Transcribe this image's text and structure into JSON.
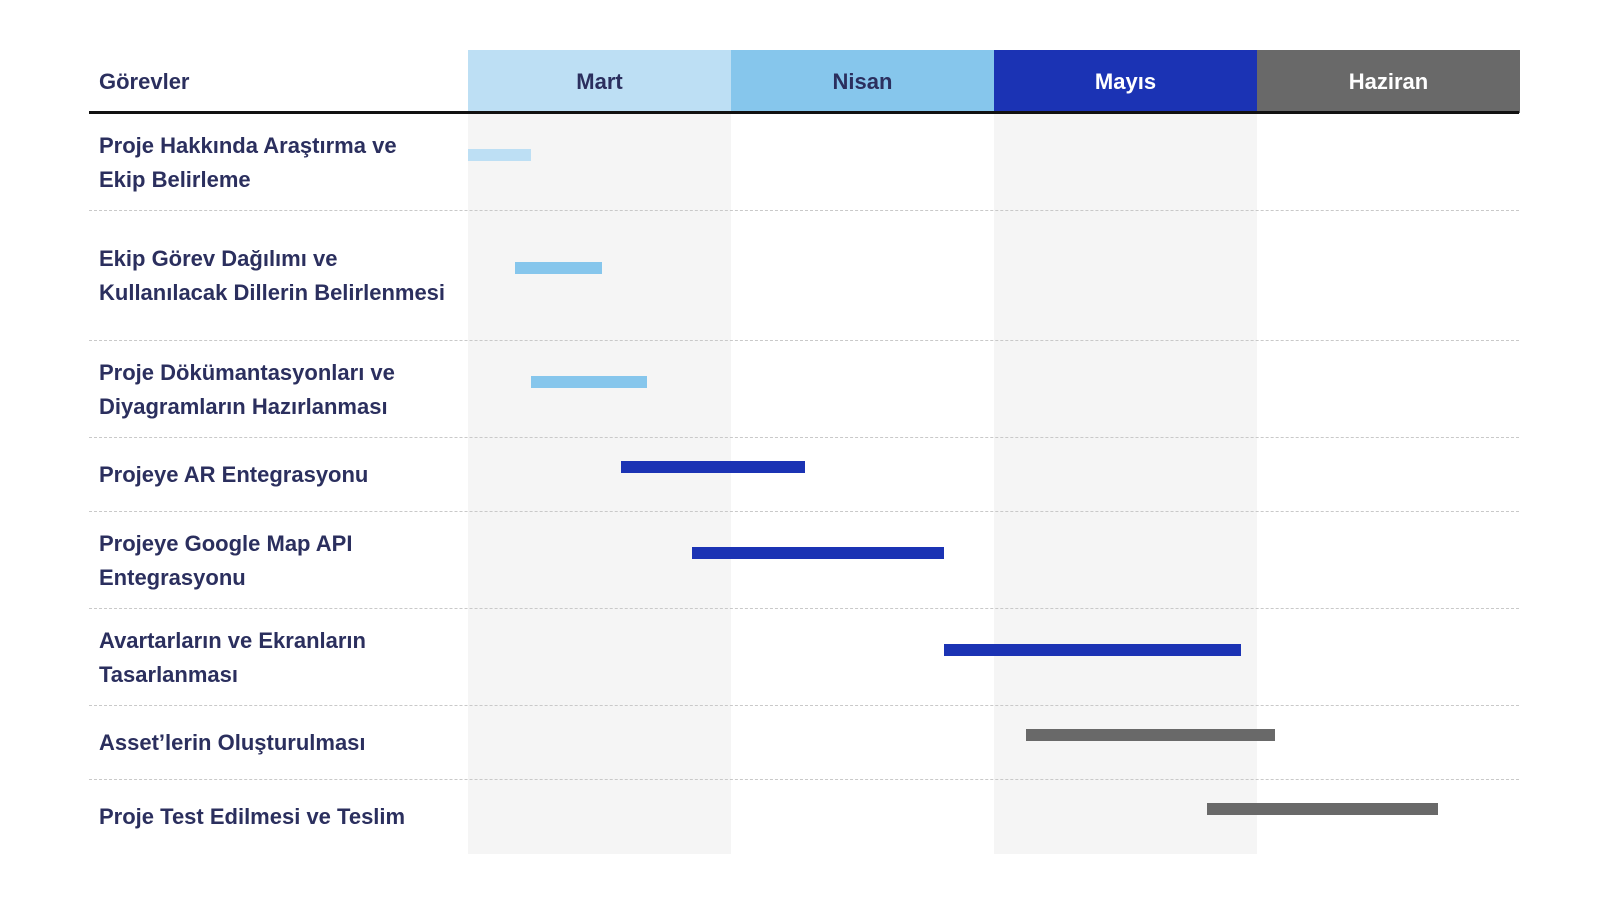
{
  "chart_data": {
    "type": "gantt",
    "header_label": "Görevler",
    "months": [
      {
        "name": "Mart",
        "color": "#bddff4",
        "text_color": "#2b2f5e",
        "band": "#f5f5f5"
      },
      {
        "name": "Nisan",
        "color": "#86c6ec",
        "text_color": "#2b2f5e",
        "band": "#ffffff"
      },
      {
        "name": "Mayıs",
        "color": "#1b33b4",
        "text_color": "#ffffff",
        "band": "#f5f5f5"
      },
      {
        "name": "Haziran",
        "color": "#696969",
        "text_color": "#ffffff",
        "band": "#ffffff"
      }
    ],
    "tasks": [
      {
        "label": "Proje Hakkında Araştırma ve Ekip Belirleme",
        "start": 0.0,
        "end": 0.24,
        "color": "#bddff4"
      },
      {
        "label": "Ekip Görev Dağılımı ve Kullanılacak Dillerin Belirlenmesi",
        "start": 0.18,
        "end": 0.51,
        "color": "#86c6ec"
      },
      {
        "label": "Proje Dökümantasyonları ve Diyagramların Hazırlanması",
        "start": 0.24,
        "end": 0.68,
        "color": "#86c6ec"
      },
      {
        "label": "Projeye AR Entegrasyonu",
        "start": 0.58,
        "end": 1.28,
        "color": "#1b33b4"
      },
      {
        "label": "Projeye Google Map API Entegrasyonu",
        "start": 0.85,
        "end": 1.81,
        "color": "#1b33b4"
      },
      {
        "label": "Avartarların ve Ekranların Tasarlanması",
        "start": 1.81,
        "end": 2.94,
        "color": "#1b33b4"
      },
      {
        "label": "Asset’lerin Oluşturulması",
        "start": 2.12,
        "end": 3.07,
        "color": "#696969"
      },
      {
        "label": "Proje Test Edilmesi ve Teslim",
        "start": 2.81,
        "end": 3.69,
        "color": "#696969"
      }
    ],
    "x_unit": "months since start of Mart",
    "xlim": [
      0,
      4
    ]
  }
}
